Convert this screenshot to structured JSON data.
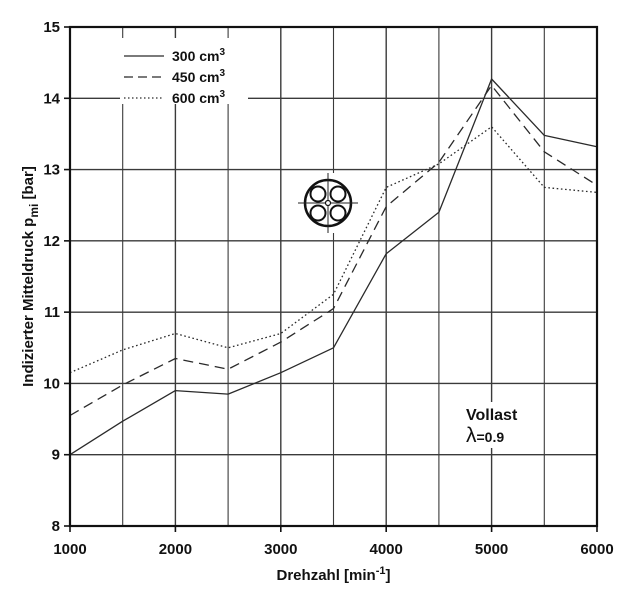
{
  "chart_data": {
    "type": "line",
    "xlabel": "Drehzahl [min",
    "xlabel_sup": "-1",
    "xlabel_suffix": "]",
    "ylabel": "Indizierter Mitteldruck p",
    "ylabel_sub": "mi",
    "ylabel_suffix": " [bar]",
    "xlim": [
      1000,
      6000
    ],
    "ylim": [
      8,
      15
    ],
    "x_ticks": [
      1000,
      2000,
      3000,
      4000,
      5000,
      6000
    ],
    "y_ticks": [
      8,
      9,
      10,
      11,
      12,
      13,
      14,
      15
    ],
    "grid": true,
    "legend_position": "top-left",
    "x": [
      1000,
      1500,
      2000,
      2500,
      3000,
      3500,
      4000,
      4500,
      5000,
      5500,
      6000
    ],
    "series": [
      {
        "name": "300 cm",
        "name_sup": "3",
        "style": "solid",
        "values": [
          9.0,
          9.47,
          9.9,
          9.85,
          10.15,
          10.5,
          11.82,
          12.4,
          14.27,
          13.48,
          13.32
        ]
      },
      {
        "name": "450 cm",
        "name_sup": "3",
        "style": "dashed",
        "values": [
          9.55,
          9.98,
          10.35,
          10.2,
          10.58,
          11.05,
          12.48,
          13.1,
          14.18,
          13.25,
          12.78
        ]
      },
      {
        "name": "600 cm",
        "name_sup": "3",
        "style": "dotted",
        "values": [
          10.15,
          10.47,
          10.7,
          10.5,
          10.7,
          11.25,
          12.75,
          13.08,
          13.6,
          12.75,
          12.68
        ]
      }
    ],
    "annotation": {
      "line1": "Vollast",
      "lambda_symbol": "λ",
      "lambda_value": "=0.9"
    },
    "colors": {
      "line": "#2a2a2a",
      "grid": "#3a3a3a",
      "axis": "#111111"
    }
  }
}
